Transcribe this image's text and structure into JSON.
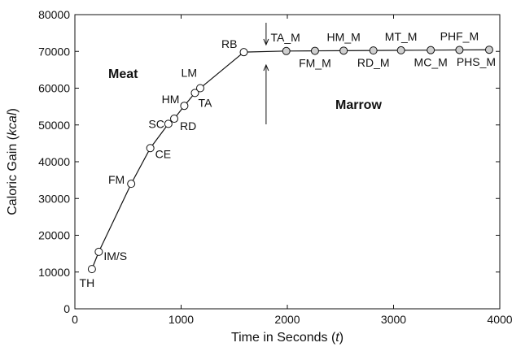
{
  "chart_data": {
    "type": "line",
    "xlabel_text": "Time in Seconds (",
    "xlabel_var": "t",
    "xlabel_close": ")",
    "ylabel_text": "Caloric Gain (",
    "ylabel_var": "kcal",
    "ylabel_close": ")",
    "xlim": [
      0,
      4000
    ],
    "ylim": [
      0,
      80000
    ],
    "xticks": [
      0,
      1000,
      2000,
      3000,
      4000
    ],
    "yticks": [
      0,
      10000,
      20000,
      30000,
      40000,
      50000,
      60000,
      70000,
      80000
    ],
    "xtick_labels": [
      "0",
      "1000",
      "2000",
      "3000",
      "4000"
    ],
    "ytick_labels": [
      "0",
      "10000",
      "20000",
      "30000",
      "40000",
      "50000",
      "60000",
      "70000",
      "80000"
    ],
    "grid": false,
    "region_labels": [
      "Meat",
      "Marrow"
    ],
    "series": [
      {
        "name": "Meat",
        "marker_fill": "#ffffff",
        "points": [
          {
            "label": "TH",
            "x": 160,
            "y": 10800
          },
          {
            "label": "IM/S",
            "x": 225,
            "y": 15500
          },
          {
            "label": "FM",
            "x": 530,
            "y": 34000
          },
          {
            "label": "CE",
            "x": 710,
            "y": 43700
          },
          {
            "label": "SC",
            "x": 880,
            "y": 50300
          },
          {
            "label": "RD",
            "x": 935,
            "y": 51700
          },
          {
            "label": "HM",
            "x": 1030,
            "y": 55200
          },
          {
            "label": "TA",
            "x": 1130,
            "y": 58700
          },
          {
            "label": "LM",
            "x": 1180,
            "y": 60000
          },
          {
            "label": "RB",
            "x": 1590,
            "y": 69800
          }
        ]
      },
      {
        "name": "Marrow",
        "marker_fill": "#cfcfcf",
        "points": [
          {
            "label": "TA_M",
            "x": 1990,
            "y": 70100
          },
          {
            "label": "FM_M",
            "x": 2260,
            "y": 70150
          },
          {
            "label": "HM_M",
            "x": 2530,
            "y": 70200
          },
          {
            "label": "RD_M",
            "x": 2810,
            "y": 70250
          },
          {
            "label": "MT_M",
            "x": 3070,
            "y": 70300
          },
          {
            "label": "MC_M",
            "x": 3350,
            "y": 70350
          },
          {
            "label": "PHF_M",
            "x": 3620,
            "y": 70400
          },
          {
            "label": "PHS_M",
            "x": 3900,
            "y": 70450
          }
        ]
      }
    ]
  }
}
